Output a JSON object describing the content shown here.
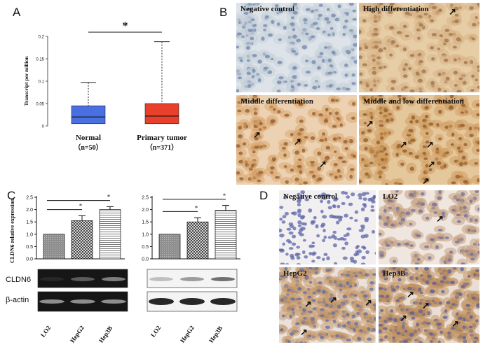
{
  "panels": {
    "a": "A",
    "b": "B",
    "c": "C",
    "d": "D"
  },
  "panel_b": {
    "tiles": [
      {
        "label": "Negative control"
      },
      {
        "label": "High differentiation"
      },
      {
        "label": "Middle differentiation"
      },
      {
        "label": "Middle and low differentiation"
      }
    ]
  },
  "panel_c": {
    "bands": [
      "CLDN6",
      "β-actin"
    ],
    "lanes": [
      "LO2",
      "HepG2",
      "Hep3B"
    ],
    "significance": [
      "*",
      "*",
      "*",
      "*"
    ]
  },
  "panel_d": {
    "tiles": [
      {
        "label": "Negative control"
      },
      {
        "label": "LO2"
      },
      {
        "label": "HepG2"
      },
      {
        "label": "Hep3B"
      }
    ]
  },
  "colors": {
    "normal_box": "#4a6fe0",
    "tumor_box": "#e8402a",
    "ihc_negative": "#c9d3dc",
    "ihc_positive": "#d4a36a"
  },
  "chart_data": [
    {
      "type": "box",
      "ylabel": "Transcript per million",
      "ylim": [
        0,
        0.2
      ],
      "yticks": [
        "0",
        "0.05",
        "0.1",
        "0.15",
        "0.2"
      ],
      "categories": [
        "Normal\n(n=50)",
        "Primary tumor\n(n=371)"
      ],
      "category_lines": [
        [
          "Normal",
          "（n=50）"
        ],
        [
          "Primary tumor",
          "（n=371）"
        ]
      ],
      "boxes": [
        {
          "min": 0.0,
          "q1": 0.005,
          "median": 0.02,
          "q3": 0.045,
          "max": 0.097
        },
        {
          "min": 0.0,
          "q1": 0.005,
          "median": 0.022,
          "q3": 0.05,
          "max": 0.188
        }
      ],
      "significance": "*"
    },
    {
      "type": "bar",
      "ylabel": "CLDN6 relative expression",
      "ylim": [
        0,
        2.5
      ],
      "yticks": [
        "0.0",
        "0.5",
        "1.0",
        "1.5",
        "2.0",
        "2.5"
      ],
      "values": [
        1.0,
        1.55,
        2.0
      ],
      "errors": [
        0,
        0.2,
        0.12
      ],
      "significance": [
        "*",
        "*"
      ]
    },
    {
      "type": "bar",
      "ylabel": "",
      "ylim": [
        0,
        2.5
      ],
      "yticks": [
        "0.0",
        "0.5",
        "1.0",
        "1.5",
        "2.0",
        "2.5"
      ],
      "values": [
        1.0,
        1.5,
        1.97
      ],
      "errors": [
        0,
        0.17,
        0.2
      ],
      "significance": [
        "*",
        "*"
      ]
    }
  ]
}
